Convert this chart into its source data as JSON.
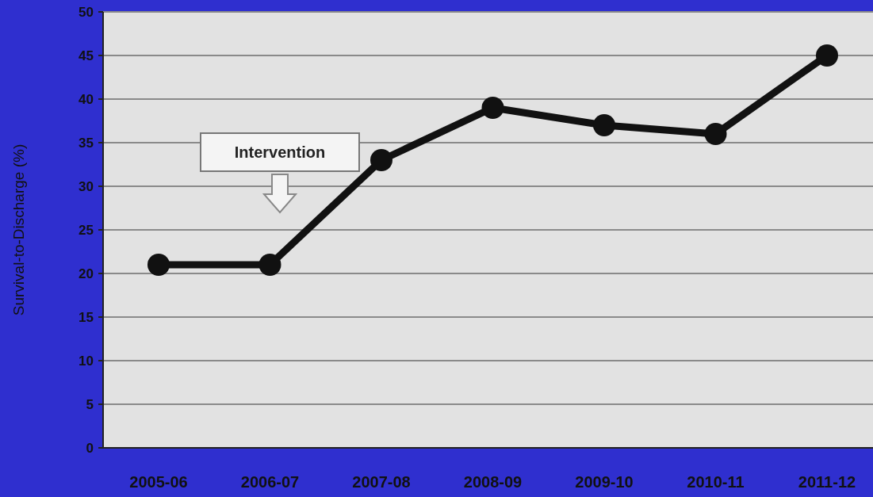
{
  "chart_data": {
    "type": "line",
    "ylabel": "Survival-to-Discharge (%)",
    "categories": [
      "2005-06",
      "2006-07",
      "2007-08",
      "2008-09",
      "2009-10",
      "2010-11",
      "2011-12"
    ],
    "series": [
      {
        "color": "#111111",
        "values": [
          21,
          21,
          33,
          39,
          37,
          36,
          45
        ]
      }
    ],
    "ylim": [
      0,
      50
    ],
    "yticks": [
      0,
      5,
      10,
      15,
      20,
      25,
      30,
      35,
      40,
      45,
      50
    ],
    "grid": "y",
    "marker": "circle",
    "line_style": "solid",
    "annotations": [
      "Intervention"
    ]
  }
}
